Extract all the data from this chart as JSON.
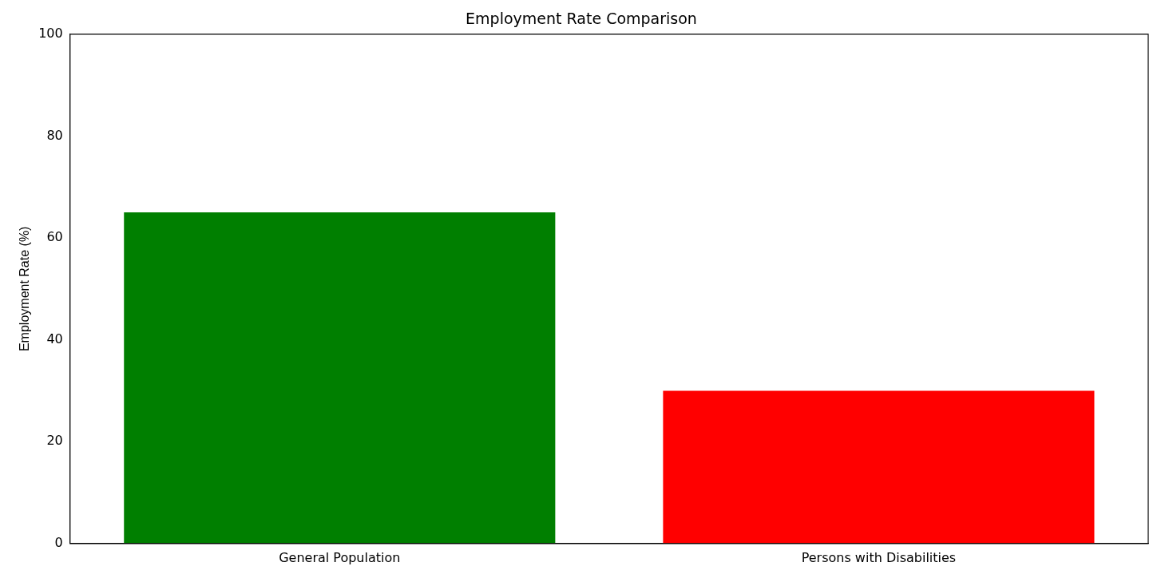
{
  "chart_data": {
    "type": "bar",
    "title": "Employment Rate Comparison",
    "ylabel": "Employment Rate (%)",
    "categories": [
      "General Population",
      "Persons with Disabilities"
    ],
    "values": [
      65,
      30
    ],
    "colors": [
      "#007f00",
      "#ff0000"
    ],
    "ylim": [
      0,
      100
    ],
    "yticks": [
      0,
      20,
      40,
      60,
      80,
      100
    ],
    "grid": false,
    "legend": false
  }
}
